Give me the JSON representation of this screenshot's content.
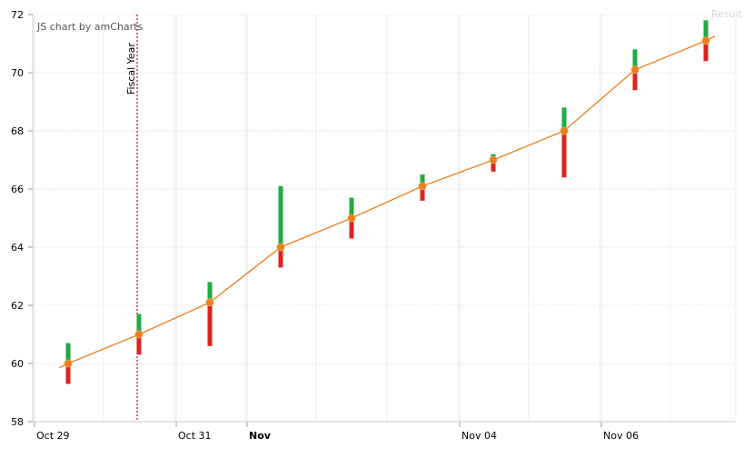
{
  "result_label": "Result",
  "credit": "JS chart by amCharts",
  "chart_data": {
    "type": "line",
    "title": "",
    "xlabel": "",
    "ylabel": "",
    "ylim": [
      58,
      72
    ],
    "yticks": [
      58,
      60,
      62,
      64,
      66,
      68,
      70,
      72
    ],
    "x_tick_labels": [
      {
        "label": "Oct 29",
        "day": 0,
        "bold": false
      },
      {
        "label": "Oct 31",
        "day": 2,
        "bold": false
      },
      {
        "label": "Nov",
        "day": 3,
        "bold": true
      },
      {
        "label": "Nov 04",
        "day": 6,
        "bold": false
      },
      {
        "label": "Nov 06",
        "day": 8,
        "bold": false
      }
    ],
    "guide": {
      "label": "Fiscal Year",
      "day": 1,
      "color": "#cc0000"
    },
    "colors": {
      "line": "#f07c1a",
      "up": "#22aa44",
      "down": "#dd2222",
      "grid": "#d8d8d8"
    },
    "series": [
      {
        "points": [
          {
            "date": "Oct 29",
            "value": 60.0,
            "high": 60.7,
            "low": 59.3
          },
          {
            "date": "Oct 30",
            "value": 61.0,
            "high": 61.7,
            "low": 60.3
          },
          {
            "date": "Oct 31",
            "value": 62.1,
            "high": 62.8,
            "low": 60.6
          },
          {
            "date": "Nov 01",
            "value": 64.0,
            "high": 66.1,
            "low": 63.3
          },
          {
            "date": "Nov 02",
            "value": 65.0,
            "high": 65.7,
            "low": 64.3
          },
          {
            "date": "Nov 03",
            "value": 66.1,
            "high": 66.5,
            "low": 65.6
          },
          {
            "date": "Nov 04",
            "value": 67.0,
            "high": 67.2,
            "low": 66.6
          },
          {
            "date": "Nov 05",
            "value": 68.0,
            "high": 68.8,
            "low": 66.4
          },
          {
            "date": "Nov 06",
            "value": 70.1,
            "high": 70.8,
            "low": 69.4
          },
          {
            "date": "Nov 07",
            "value": 71.1,
            "high": 71.8,
            "low": 70.4
          }
        ]
      }
    ]
  }
}
